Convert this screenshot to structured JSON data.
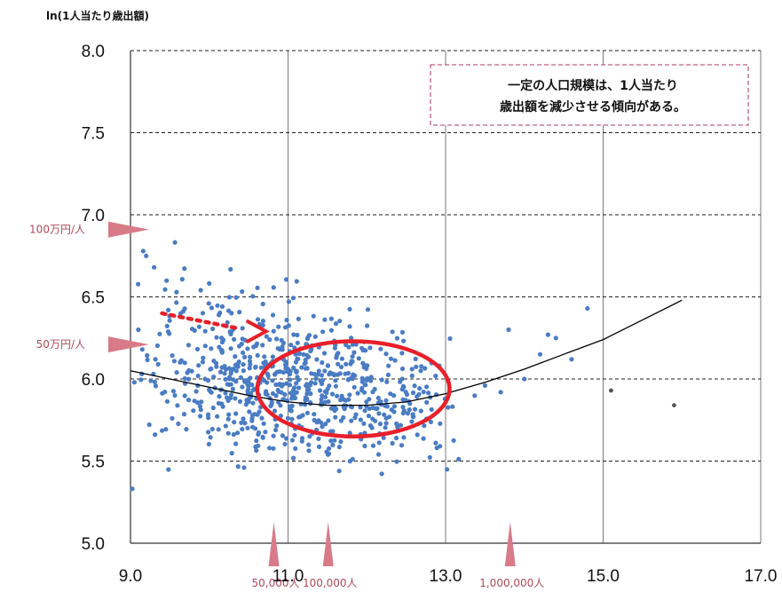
{
  "chart_data": {
    "type": "scatter",
    "ylabel": "ln(1人当たり歳出額)",
    "xlim": [
      9.0,
      17.0
    ],
    "ylim": [
      5.0,
      8.0
    ],
    "x_ticks": [
      "9.0",
      "11.0",
      "13.0",
      "15.0",
      "17.0"
    ],
    "y_ticks": [
      "5.0",
      "5.5",
      "6.0",
      "6.5",
      "7.0",
      "7.5",
      "8.0"
    ],
    "grid": {
      "vertical": "solid",
      "horizontal": "dashed"
    },
    "point_color": "#4a7cc4",
    "outlier_color": "#555555",
    "curve_color": "#000000",
    "highlight_color": "#e8202a",
    "marker_color": "#d87a88",
    "annotation": {
      "lines": [
        "一定の人口規模は、1人当たり",
        "歳出額を減少させる傾向がある。"
      ],
      "border_color": "#c06080"
    },
    "x_markers": [
      {
        "label": "50,000人",
        "x": 10.82
      },
      {
        "label": "100,000人",
        "x": 11.51
      },
      {
        "label": "1,000,000人",
        "x": 13.82
      }
    ],
    "y_markers": [
      {
        "label": "100万円/人",
        "y": 6.91
      },
      {
        "label": "50万円/人",
        "y": 6.21
      }
    ],
    "fit_curve": [
      {
        "x": 9.0,
        "y": 6.05
      },
      {
        "x": 9.5,
        "y": 6.0
      },
      {
        "x": 10.0,
        "y": 5.95
      },
      {
        "x": 10.5,
        "y": 5.9
      },
      {
        "x": 11.0,
        "y": 5.86
      },
      {
        "x": 11.5,
        "y": 5.84
      },
      {
        "x": 12.0,
        "y": 5.84
      },
      {
        "x": 12.5,
        "y": 5.86
      },
      {
        "x": 13.0,
        "y": 5.91
      },
      {
        "x": 13.5,
        "y": 5.98
      },
      {
        "x": 14.0,
        "y": 6.06
      },
      {
        "x": 14.5,
        "y": 6.15
      },
      {
        "x": 15.0,
        "y": 6.24
      },
      {
        "x": 15.5,
        "y": 6.36
      },
      {
        "x": 16.0,
        "y": 6.48
      }
    ],
    "highlight_ellipse": {
      "cx": 11.83,
      "cy": 5.94,
      "rx": 1.22,
      "ry": 0.29
    },
    "outliers": [
      {
        "x": 15.1,
        "y": 5.93
      },
      {
        "x": 15.9,
        "y": 5.84
      }
    ]
  }
}
